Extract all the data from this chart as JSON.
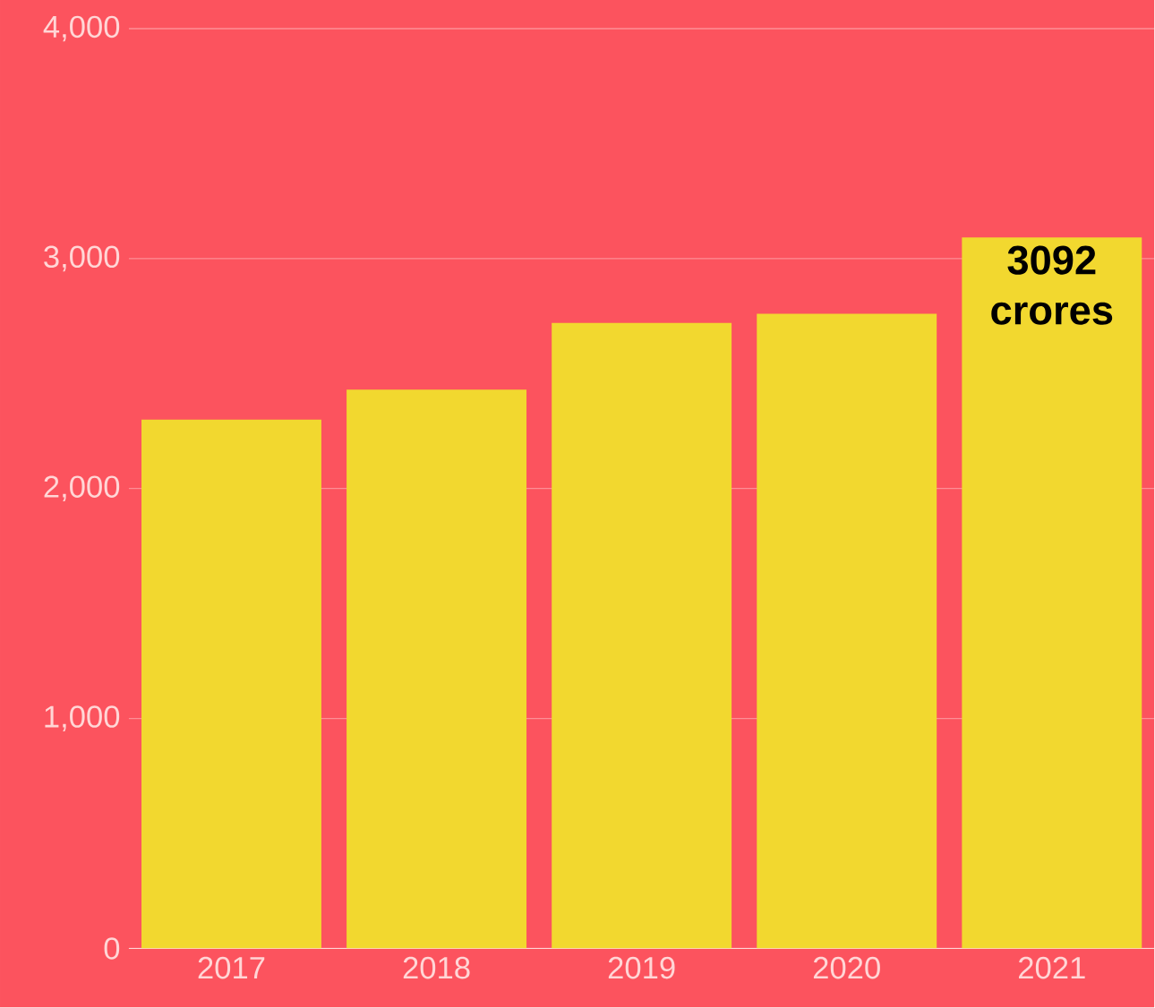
{
  "chart_data": {
    "type": "bar",
    "categories": [
      "2017",
      "2018",
      "2019",
      "2020",
      "2021"
    ],
    "values": [
      2300,
      2430,
      2720,
      2760,
      3092
    ],
    "value_labels": [
      null,
      null,
      null,
      null,
      "3092 crores"
    ],
    "color": "#f2d82f",
    "ylim": [
      0,
      4000
    ],
    "yticks": [
      0,
      {
        "value": 1000,
        "label": "1,000"
      },
      {
        "value": 2000,
        "label": "2,000"
      },
      {
        "value": 3000,
        "label": "3,000"
      },
      {
        "value": 4000,
        "label": "4,000"
      }
    ],
    "grid": "y"
  }
}
